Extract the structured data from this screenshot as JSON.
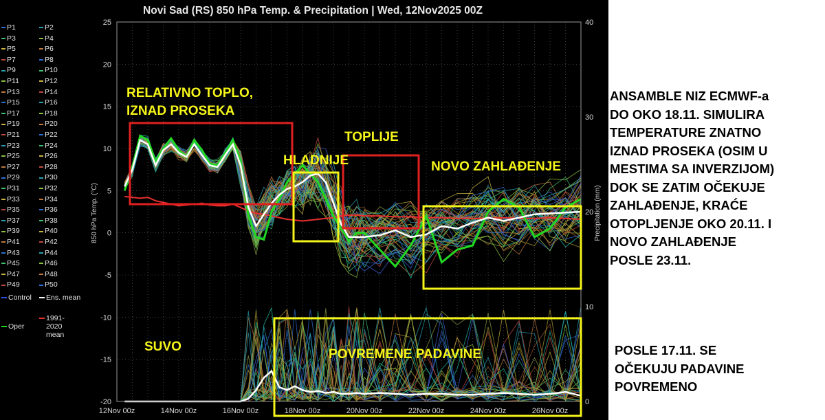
{
  "chart_data": {
    "type": "line",
    "title": "Novi Sad  (RS)  850 hPa Temp. & Precipitation | Wed, 12Nov2025 00Z",
    "ylabel": "850 hPa Temp. (°C)",
    "ylabel_right": "Precipitation (mm)",
    "ylim": [
      -20,
      25
    ],
    "ylim_right": [
      0,
      40
    ],
    "yticks": [
      "25",
      "20",
      "15",
      "10",
      "5",
      "0",
      "-5",
      "-10",
      "-15",
      "-20"
    ],
    "yticks_right": [
      "40",
      "30",
      "20",
      "10",
      "0"
    ],
    "xticks": [
      "12Nov 00z",
      "14Nov 00z",
      "16Nov 00z",
      "18Nov 00z",
      "20Nov 00z",
      "22Nov 00z",
      "24Nov 00z",
      "26Nov 00z"
    ],
    "grid": true,
    "legend": {
      "placement": "left",
      "entries": [
        "P1",
        "P2",
        "P3",
        "P4",
        "P5",
        "P6",
        "P7",
        "P8",
        "P9",
        "P10",
        "P11",
        "P12",
        "P13",
        "P14",
        "P15",
        "P16",
        "P17",
        "P18",
        "P19",
        "P20",
        "P21",
        "P22",
        "P23",
        "P24",
        "P25",
        "P26",
        "P27",
        "P28",
        "P29",
        "P30",
        "P31",
        "P32",
        "P33",
        "P34",
        "P35",
        "P36",
        "P37",
        "P38",
        "P39",
        "P40",
        "P41",
        "P42",
        "P43",
        "P44",
        "P45",
        "P46",
        "P47",
        "P48",
        "P49",
        "P50",
        "Control",
        "Ens. mean",
        "Oper",
        "1991-2020 mean"
      ]
    },
    "x": [
      0.25,
      0.5,
      0.75,
      1.0,
      1.25,
      1.5,
      1.75,
      2.0,
      2.25,
      2.5,
      2.75,
      3.0,
      3.25,
      3.5,
      3.75,
      4.0,
      4.25,
      4.5,
      4.75,
      5.0,
      5.25,
      5.5,
      5.75,
      6.0,
      6.25,
      6.5,
      6.75,
      7.0,
      7.25,
      7.5,
      7.75,
      8.0,
      8.5,
      9.0,
      9.5,
      10.0,
      10.5,
      11.0,
      11.5,
      12.0,
      12.5,
      13.0,
      13.5,
      14.0,
      14.5,
      15.0
    ],
    "x_unit": "days from 12Nov 00z",
    "series": [
      {
        "name": "Ens. mean",
        "color": "#ffffff",
        "values": [
          5.5,
          7.5,
          11,
          10.5,
          8,
          9.8,
          10.5,
          9.5,
          9,
          10.5,
          9.2,
          8,
          7.8,
          9.2,
          10.5,
          8,
          3,
          0.8,
          2.2,
          3.5,
          4.5,
          5.2,
          5.5,
          6,
          6.8,
          7,
          6,
          3.5,
          1,
          -0.5,
          -0.5,
          -0.5,
          -0.3,
          0.3,
          -0.5,
          -0.2,
          0.8,
          0.5,
          1.2,
          1.8,
          1.4,
          1.8,
          2.2,
          2.3,
          2.4,
          2.5
        ]
      },
      {
        "name": "Oper",
        "color": "#22d822",
        "values": [
          5,
          7.8,
          11.5,
          11,
          8.5,
          10,
          11.2,
          9.8,
          9,
          11,
          9.8,
          8.2,
          8,
          9.5,
          11,
          8.5,
          2,
          -0.5,
          -0.8,
          2.5,
          4,
          6,
          7,
          8,
          7,
          6,
          4,
          2,
          0.5,
          -1,
          0,
          0,
          -2,
          -4,
          -1.5,
          2,
          -3.5,
          -2,
          -1.5,
          2.5,
          4,
          3,
          -0.5,
          0.5,
          3,
          4
        ]
      },
      {
        "name": "1991-2020 mean",
        "color": "#e83030",
        "values": [
          4.3,
          4.2,
          4.1,
          4.2,
          3.8,
          3.6,
          3.4,
          3.2,
          3.3,
          3.4,
          3.5,
          3.3,
          3.2,
          3.2,
          3.4,
          3,
          2.6,
          2.3,
          2.2,
          2.0,
          1.8,
          1.6,
          1.5,
          1.4,
          1.5,
          1.6,
          1.7,
          1.8,
          2.0,
          2.1,
          2.1,
          2.0,
          2.0,
          1.9,
          1.9,
          1.8,
          1.8,
          1.7,
          1.7,
          1.7,
          1.8,
          1.7,
          1.7,
          1.8,
          1.7,
          1.6
        ]
      },
      {
        "name": "Precipitation ens. mean",
        "color": "#ffffff",
        "values": [
          0,
          0,
          0,
          0,
          0,
          0,
          0,
          0,
          0,
          0,
          0,
          0,
          0,
          0,
          0,
          0,
          0.3,
          1.2,
          2.5,
          3.2,
          1.5,
          1.2,
          1.6,
          1.2,
          1.0,
          1.1,
          0.9,
          1.0,
          0.8,
          0.8,
          0.9,
          0.8,
          0.9,
          0.8,
          0.7,
          0.8,
          0.8,
          0.7,
          0.7,
          0.8,
          0.9,
          0.8,
          0.7,
          0.8,
          1.0,
          0.6
        ]
      }
    ]
  },
  "annotations": {
    "warm_title_1": "RELATIVNO TOPLO,",
    "warm_title_2": "IZNAD PROSEKA",
    "colder": "HLADNIJE",
    "warmer": "TOPLIJE",
    "new_cooling": "NOVO ZAHLAĐENJE",
    "dry": "SUVO",
    "periodic_precip": "POVREMENE PADAVINE"
  },
  "side_note_1": [
    "ANSAMBLE NIZ ECMWF-a",
    "DO OKO 18.11. SIMULIRA",
    "TEMPERATURE ZNATNO",
    "IZNAD PROSEKA (OSIM U",
    "MESTIMA SA INVERZIJOM)",
    "DOK SE ZATIM OČEKUJE",
    "ZAHLAĐENJE, KRAĆE",
    "OTOPLJENJE OKO 20.11. I",
    "NOVO ZAHLAĐENJE",
    "POSLE 23.11."
  ],
  "side_note_2": [
    "POSLE 17.11. SE",
    "OČEKUJU PADAVINE",
    "POVREMENO"
  ],
  "colors": {
    "annotation_red": "#e02020",
    "annotation_yellow": "#f5f51a",
    "mean": "#ffffff",
    "oper": "#22d822",
    "climate": "#e83030",
    "background": "#000000"
  }
}
